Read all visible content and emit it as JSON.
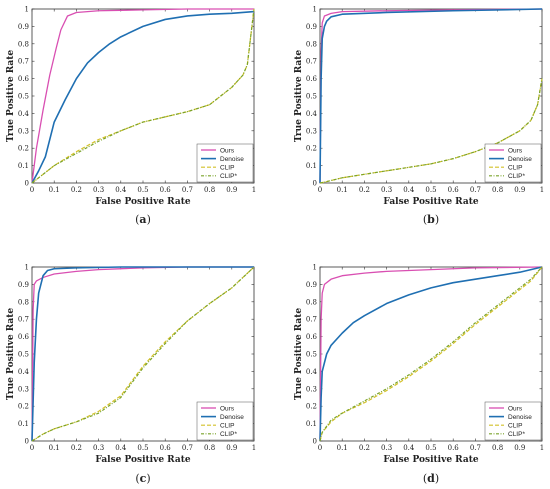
{
  "legend_labels": [
    "Ours",
    "Denoise",
    "CLIP",
    "CLIP*"
  ],
  "colors": {
    "ours": "#d94fb2",
    "denoise": "#1f6fb2",
    "clip": "#d4c12a",
    "clip_star": "#7aa32a"
  },
  "chart_data": [
    {
      "type": "line",
      "caption": "(a)",
      "xlabel": "False Positive Rate",
      "ylabel": "True Positive Rate",
      "xlim": [
        0,
        1
      ],
      "ylim": [
        0,
        1
      ],
      "xticks": [
        "0",
        "0.1",
        "0.2",
        "0.3",
        "0.4",
        "0.5",
        "0.6",
        "0.7",
        "0.8",
        "0.9",
        "1"
      ],
      "yticks": [
        "0",
        "0.1",
        "0.2",
        "0.3",
        "0.4",
        "0.5",
        "0.6",
        "0.7",
        "0.8",
        "0.9",
        "1"
      ],
      "grid": false,
      "legend_position": "bottom-right",
      "series": [
        {
          "name": "Ours",
          "x": [
            0,
            0.02,
            0.05,
            0.08,
            0.11,
            0.13,
            0.16,
            0.2,
            0.3,
            0.5,
            0.7,
            1
          ],
          "y": [
            0,
            0.2,
            0.42,
            0.62,
            0.78,
            0.88,
            0.96,
            0.98,
            0.99,
            0.995,
            1,
            1
          ]
        },
        {
          "name": "Denoise",
          "x": [
            0,
            0.03,
            0.06,
            0.1,
            0.15,
            0.2,
            0.25,
            0.3,
            0.35,
            0.4,
            0.5,
            0.6,
            0.7,
            0.8,
            0.9,
            1
          ],
          "y": [
            0,
            0.07,
            0.15,
            0.35,
            0.48,
            0.6,
            0.69,
            0.75,
            0.8,
            0.84,
            0.9,
            0.94,
            0.96,
            0.97,
            0.975,
            0.985
          ]
        },
        {
          "name": "CLIP",
          "x": [
            0,
            0.05,
            0.1,
            0.2,
            0.3,
            0.4,
            0.5,
            0.6,
            0.7,
            0.8,
            0.9,
            0.95,
            0.97,
            1
          ],
          "y": [
            0,
            0.05,
            0.1,
            0.18,
            0.25,
            0.3,
            0.35,
            0.38,
            0.41,
            0.45,
            0.55,
            0.62,
            0.68,
            1
          ]
        },
        {
          "name": "CLIP*",
          "x": [
            0,
            0.05,
            0.1,
            0.2,
            0.3,
            0.4,
            0.5,
            0.6,
            0.7,
            0.8,
            0.9,
            0.95,
            0.97,
            1
          ],
          "y": [
            0,
            0.05,
            0.1,
            0.17,
            0.24,
            0.3,
            0.35,
            0.38,
            0.41,
            0.45,
            0.55,
            0.62,
            0.68,
            1
          ]
        }
      ]
    },
    {
      "type": "line",
      "caption": "(b)",
      "xlabel": "False Positive Rate",
      "ylabel": "True Positive Rate",
      "xlim": [
        0,
        1
      ],
      "ylim": [
        0,
        1
      ],
      "xticks": [
        "0",
        "0.1",
        "0.2",
        "0.3",
        "0.4",
        "0.5",
        "0.6",
        "0.7",
        "0.8",
        "0.9",
        "1"
      ],
      "yticks": [
        "0",
        "0.1",
        "0.2",
        "0.3",
        "0.4",
        "0.5",
        "0.6",
        "0.7",
        "0.8",
        "0.9",
        "1"
      ],
      "grid": false,
      "legend_position": "bottom-right",
      "series": [
        {
          "name": "Ours",
          "x": [
            0,
            0.005,
            0.01,
            0.02,
            0.05,
            0.1,
            0.3,
            0.6,
            1
          ],
          "y": [
            0,
            0.75,
            0.92,
            0.96,
            0.975,
            0.985,
            0.99,
            0.995,
            1
          ]
        },
        {
          "name": "Denoise",
          "x": [
            0,
            0.005,
            0.01,
            0.02,
            0.03,
            0.05,
            0.1,
            0.3,
            0.6,
            1
          ],
          "y": [
            0,
            0.6,
            0.83,
            0.9,
            0.93,
            0.955,
            0.97,
            0.98,
            0.99,
            1
          ]
        },
        {
          "name": "CLIP",
          "x": [
            0,
            0.02,
            0.1,
            0.2,
            0.3,
            0.4,
            0.5,
            0.6,
            0.7,
            0.8,
            0.9,
            0.95,
            0.98,
            1
          ],
          "y": [
            0,
            0.005,
            0.03,
            0.05,
            0.07,
            0.09,
            0.11,
            0.14,
            0.18,
            0.23,
            0.3,
            0.36,
            0.45,
            0.6
          ]
        },
        {
          "name": "CLIP*",
          "x": [
            0,
            0.02,
            0.1,
            0.2,
            0.3,
            0.4,
            0.5,
            0.6,
            0.7,
            0.8,
            0.9,
            0.95,
            0.98,
            1
          ],
          "y": [
            0,
            0.005,
            0.03,
            0.05,
            0.07,
            0.09,
            0.11,
            0.14,
            0.18,
            0.23,
            0.3,
            0.36,
            0.45,
            0.6
          ]
        }
      ]
    },
    {
      "type": "line",
      "caption": "(c)",
      "xlabel": "False Positive Rate",
      "ylabel": "True Positive Rate",
      "xlim": [
        0,
        1
      ],
      "ylim": [
        0,
        1
      ],
      "xticks": [
        "0",
        "0.1",
        "0.2",
        "0.3",
        "0.4",
        "0.5",
        "0.6",
        "0.7",
        "0.8",
        "0.9",
        "1"
      ],
      "yticks": [
        "0",
        "0.1",
        "0.2",
        "0.3",
        "0.4",
        "0.5",
        "0.6",
        "0.7",
        "0.8",
        "0.9",
        "1"
      ],
      "grid": false,
      "legend_position": "bottom-right",
      "series": [
        {
          "name": "Ours",
          "x": [
            0,
            0.005,
            0.01,
            0.02,
            0.05,
            0.1,
            0.2,
            0.3,
            0.5,
            0.7,
            1
          ],
          "y": [
            0,
            0.75,
            0.9,
            0.92,
            0.94,
            0.96,
            0.975,
            0.985,
            0.995,
            1,
            1
          ]
        },
        {
          "name": "Denoise",
          "x": [
            0,
            0.01,
            0.02,
            0.03,
            0.05,
            0.07,
            0.1,
            0.2,
            0.4,
            0.7,
            1
          ],
          "y": [
            0,
            0.45,
            0.7,
            0.85,
            0.95,
            0.98,
            0.99,
            0.995,
            1,
            1,
            1
          ]
        },
        {
          "name": "CLIP",
          "x": [
            0,
            0.05,
            0.1,
            0.2,
            0.3,
            0.4,
            0.5,
            0.6,
            0.7,
            0.8,
            0.9,
            0.95,
            1
          ],
          "y": [
            0,
            0.04,
            0.07,
            0.11,
            0.17,
            0.26,
            0.43,
            0.57,
            0.69,
            0.79,
            0.88,
            0.94,
            1
          ]
        },
        {
          "name": "CLIP*",
          "x": [
            0,
            0.05,
            0.1,
            0.2,
            0.3,
            0.4,
            0.5,
            0.6,
            0.7,
            0.8,
            0.9,
            0.95,
            1
          ],
          "y": [
            0,
            0.04,
            0.07,
            0.11,
            0.16,
            0.25,
            0.42,
            0.56,
            0.69,
            0.79,
            0.88,
            0.94,
            1
          ]
        }
      ]
    },
    {
      "type": "line",
      "caption": "(d)",
      "xlabel": "False Positive Rate",
      "ylabel": "True Positive Rate",
      "xlim": [
        0,
        1
      ],
      "ylim": [
        0,
        1
      ],
      "xticks": [
        "0",
        "0.1",
        "0.2",
        "0.3",
        "0.4",
        "0.5",
        "0.6",
        "0.7",
        "0.8",
        "0.9",
        "1"
      ],
      "yticks": [
        "0",
        "0.1",
        "0.2",
        "0.3",
        "0.4",
        "0.5",
        "0.6",
        "0.7",
        "0.8",
        "0.9",
        "1"
      ],
      "grid": false,
      "legend_position": "bottom-right",
      "series": [
        {
          "name": "Ours",
          "x": [
            0,
            0.005,
            0.01,
            0.02,
            0.05,
            0.1,
            0.2,
            0.3,
            0.5,
            0.7,
            1
          ],
          "y": [
            0,
            0.7,
            0.85,
            0.9,
            0.93,
            0.95,
            0.965,
            0.975,
            0.985,
            0.995,
            1
          ]
        },
        {
          "name": "Denoise",
          "x": [
            0,
            0.005,
            0.01,
            0.03,
            0.05,
            0.1,
            0.15,
            0.2,
            0.3,
            0.4,
            0.5,
            0.6,
            0.7,
            0.8,
            0.9,
            1
          ],
          "y": [
            0,
            0.25,
            0.4,
            0.5,
            0.55,
            0.62,
            0.68,
            0.72,
            0.79,
            0.84,
            0.88,
            0.91,
            0.93,
            0.95,
            0.97,
            1
          ]
        },
        {
          "name": "CLIP",
          "x": [
            0,
            0.01,
            0.05,
            0.1,
            0.2,
            0.3,
            0.4,
            0.5,
            0.6,
            0.7,
            0.8,
            0.9,
            0.95,
            1
          ],
          "y": [
            0,
            0.05,
            0.11,
            0.16,
            0.22,
            0.29,
            0.37,
            0.46,
            0.56,
            0.67,
            0.77,
            0.87,
            0.92,
            1
          ]
        },
        {
          "name": "CLIP*",
          "x": [
            0,
            0.01,
            0.05,
            0.1,
            0.2,
            0.3,
            0.4,
            0.5,
            0.6,
            0.7,
            0.8,
            0.9,
            0.95,
            1
          ],
          "y": [
            0,
            0.05,
            0.12,
            0.16,
            0.23,
            0.3,
            0.38,
            0.47,
            0.57,
            0.68,
            0.78,
            0.88,
            0.93,
            1
          ]
        }
      ]
    }
  ]
}
